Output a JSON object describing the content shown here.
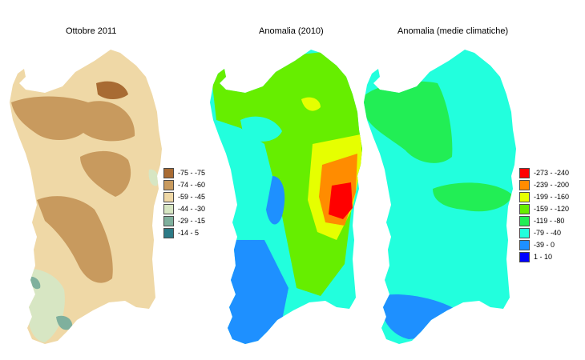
{
  "maps": [
    {
      "title": "Ottobre 2011"
    },
    {
      "title": "Anomalia (2010)"
    },
    {
      "title": "Anomalia (medie climatiche)"
    }
  ],
  "legend_monthly": [
    {
      "label": "-75 - -75",
      "color": "#a86b33"
    },
    {
      "label": "-74 - -60",
      "color": "#c89a5e"
    },
    {
      "label": "-59 - -45",
      "color": "#efd8a6"
    },
    {
      "label": "-44 - -30",
      "color": "#d7e6c3"
    },
    {
      "label": "-29 - -15",
      "color": "#7fb09d"
    },
    {
      "label": "-14 - 5",
      "color": "#2c7a86"
    }
  ],
  "legend_anomaly": [
    {
      "label": "-273 - -240",
      "color": "#ff0000"
    },
    {
      "label": "-239 - -200",
      "color": "#ff8c00"
    },
    {
      "label": "-199 - -160",
      "color": "#e6ff00"
    },
    {
      "label": "-159 - -120",
      "color": "#66ee00"
    },
    {
      "label": "-119 - -80",
      "color": "#22ee55"
    },
    {
      "label": "-79 - -40",
      "color": "#22ffdd"
    },
    {
      "label": "-39 - 0",
      "color": "#1e90ff"
    },
    {
      "label": "1 - 10",
      "color": "#0000ff"
    }
  ]
}
